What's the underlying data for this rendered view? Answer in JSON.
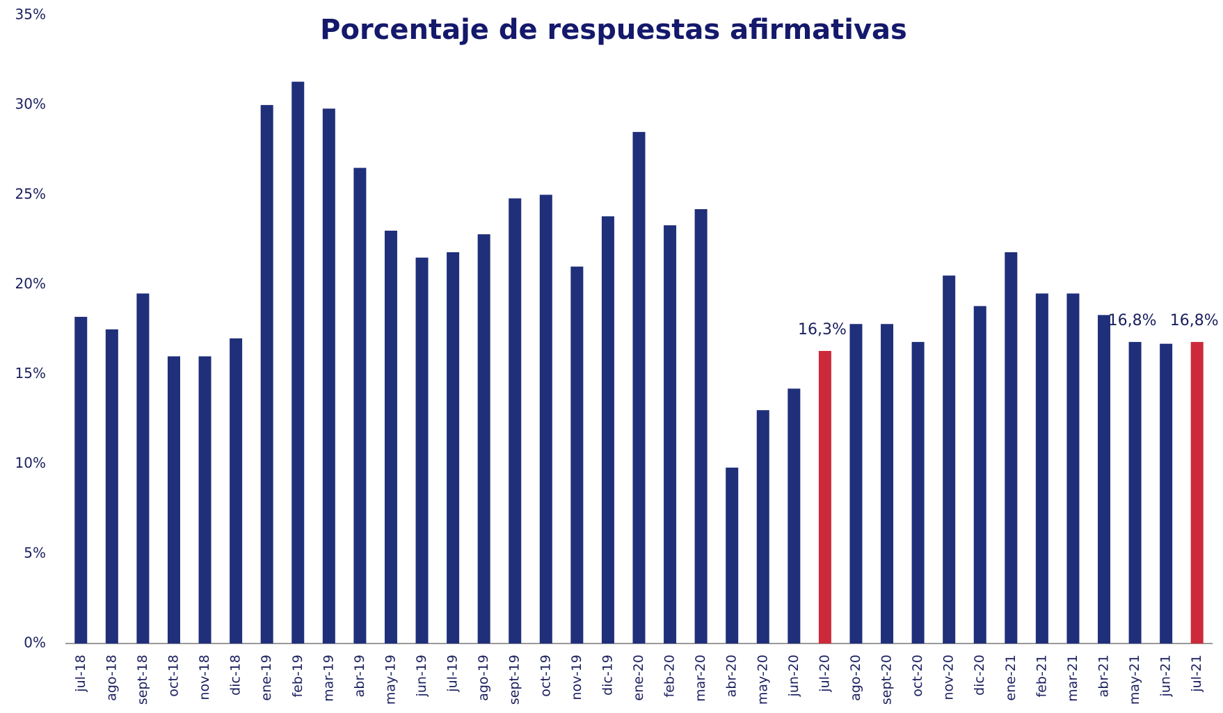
{
  "chart_data": {
    "type": "bar",
    "title": "Porcentaje de respuestas afirmativas",
    "categories": [
      "jul-18",
      "ago-18",
      "sept-18",
      "oct-18",
      "nov-18",
      "dic-18",
      "ene-19",
      "feb-19",
      "mar-19",
      "abr-19",
      "may-19",
      "jun-19",
      "jul-19",
      "ago-19",
      "sept-19",
      "oct-19",
      "nov-19",
      "dic-19",
      "ene-20",
      "feb-20",
      "mar-20",
      "abr-20",
      "may-20",
      "jun-20",
      "jul-20",
      "ago-20",
      "sept-20",
      "oct-20",
      "nov-20",
      "dic-20",
      "ene-21",
      "feb-21",
      "mar-21",
      "abr-21",
      "may-21",
      "jun-21",
      "jul-21"
    ],
    "values": [
      18.2,
      17.5,
      19.5,
      16.0,
      16.0,
      17.0,
      30.0,
      31.3,
      29.8,
      26.5,
      23.0,
      21.5,
      21.8,
      22.8,
      24.8,
      25.0,
      21.0,
      23.8,
      28.5,
      23.3,
      24.2,
      9.8,
      13.0,
      14.2,
      16.3,
      17.8,
      17.8,
      16.8,
      20.5,
      18.8,
      21.8,
      19.5,
      19.5,
      18.3,
      16.8,
      16.7,
      16.8
    ],
    "value_labels": [
      null,
      null,
      null,
      null,
      null,
      null,
      null,
      null,
      null,
      null,
      null,
      null,
      null,
      null,
      null,
      null,
      null,
      null,
      null,
      null,
      null,
      null,
      null,
      null,
      "16,3%",
      null,
      null,
      null,
      null,
      null,
      null,
      null,
      null,
      null,
      "16,8%",
      null,
      "16,8%"
    ],
    "colors": [
      "#1f2f7a",
      "#1f2f7a",
      "#1f2f7a",
      "#1f2f7a",
      "#1f2f7a",
      "#1f2f7a",
      "#1f2f7a",
      "#1f2f7a",
      "#1f2f7a",
      "#1f2f7a",
      "#1f2f7a",
      "#1f2f7a",
      "#1f2f7a",
      "#1f2f7a",
      "#1f2f7a",
      "#1f2f7a",
      "#1f2f7a",
      "#1f2f7a",
      "#1f2f7a",
      "#1f2f7a",
      "#1f2f7a",
      "#1f2f7a",
      "#1f2f7a",
      "#1f2f7a",
      "#cc2a3a",
      "#1f2f7a",
      "#1f2f7a",
      "#1f2f7a",
      "#1f2f7a",
      "#1f2f7a",
      "#1f2f7a",
      "#1f2f7a",
      "#1f2f7a",
      "#1f2f7a",
      "#1f2f7a",
      "#1f2f7a",
      "#cc2a3a"
    ],
    "ylim": [
      0,
      35
    ],
    "yticks": [
      {
        "value": 0,
        "label": "0%"
      },
      {
        "value": 5,
        "label": "5%"
      },
      {
        "value": 10,
        "label": "10%"
      },
      {
        "value": 15,
        "label": "15%"
      },
      {
        "value": 20,
        "label": "20%"
      },
      {
        "value": 25,
        "label": "25%"
      },
      {
        "value": 30,
        "label": "30%"
      },
      {
        "value": 35,
        "label": "35%"
      }
    ],
    "grid": false
  }
}
